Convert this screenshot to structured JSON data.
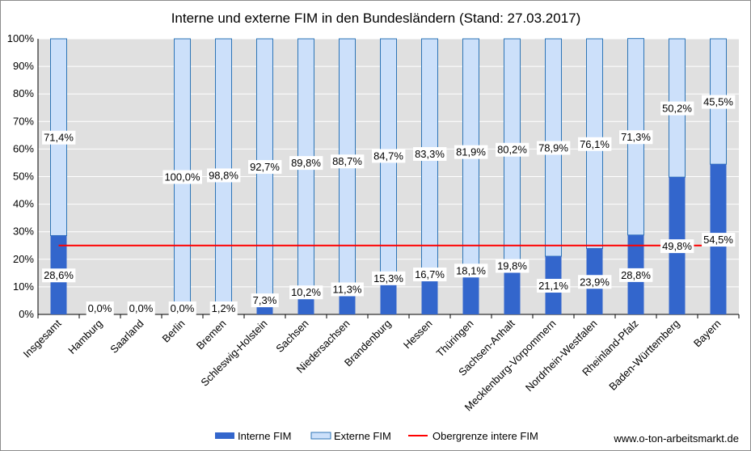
{
  "chart_data": {
    "type": "bar",
    "stacked": true,
    "title": "Interne und externe FIM in den Bundesländern (Stand: 27.03.2017)",
    "categories": [
      "Insgesamt",
      "Hamburg",
      "Saarland",
      "Berlin",
      "Bremen",
      "Schleswig-Holstein",
      "Sachsen",
      "Niedersachsen",
      "Brandenburg",
      "Hessen",
      "Thüringen",
      "Sachsen-Anhalt",
      "Mecklenburg-Vorpommern",
      "Nordrhein-Westfalen",
      "Rheinland-Pfalz",
      "Baden-Württemberg",
      "Bayern"
    ],
    "series": [
      {
        "name": "Interne FIM",
        "color": "#3366cc",
        "values": [
          28.6,
          0.0,
          0.0,
          0.0,
          1.2,
          7.3,
          10.2,
          11.3,
          15.3,
          16.7,
          18.1,
          19.8,
          21.1,
          23.9,
          28.8,
          49.8,
          54.5
        ],
        "labels": [
          "28,6%",
          "0,0%",
          "0,0%",
          "0,0%",
          "1,2%",
          "7,3%",
          "10,2%",
          "11,3%",
          "15,3%",
          "16,7%",
          "18,1%",
          "19,8%",
          "21,1%",
          "23,9%",
          "28,8%",
          "49,8%",
          "54,5%"
        ]
      },
      {
        "name": "Externe FIM",
        "color": "#cce0fa",
        "values": [
          71.4,
          null,
          null,
          100.0,
          98.8,
          92.7,
          89.8,
          88.7,
          84.7,
          83.3,
          81.9,
          80.2,
          78.9,
          76.1,
          71.3,
          50.2,
          45.5
        ],
        "labels": [
          "71,4%",
          "",
          "",
          "100,0%",
          "98,8%",
          "92,7%",
          "89,8%",
          "88,7%",
          "84,7%",
          "83,3%",
          "81,9%",
          "80,2%",
          "78,9%",
          "76,1%",
          "71,3%",
          "50,2%",
          "45,5%"
        ]
      }
    ],
    "reference_line": {
      "name": "Obergrenze intere FIM",
      "value": 25,
      "color": "#ff0000"
    },
    "yticks": [
      "0%",
      "10%",
      "20%",
      "30%",
      "40%",
      "50%",
      "60%",
      "70%",
      "80%",
      "90%",
      "100%"
    ],
    "ylim": [
      0,
      100
    ],
    "grid": true,
    "legend_position": "bottom"
  },
  "footer": {
    "source": "www.o-ton-arbeitsmarkt.de"
  },
  "colors": {
    "plot_background": "#e0e0e0",
    "axis": "#000000"
  }
}
